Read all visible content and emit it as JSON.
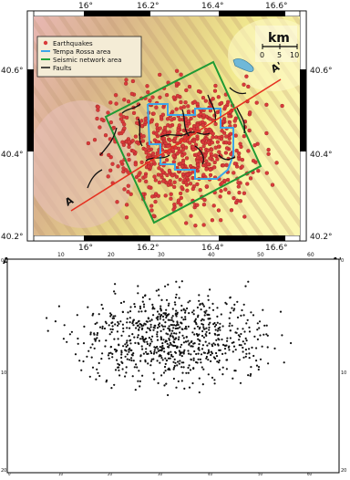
{
  "map": {
    "lon_ticks": [
      "16°",
      "16.2°",
      "16.4°",
      "16.6°"
    ],
    "lat_ticks": [
      "40.6°",
      "40.4°",
      "40.2°"
    ],
    "legend": {
      "items": [
        {
          "key": "earthquakes",
          "label": "Earthquakes",
          "color": "#d93a3a"
        },
        {
          "key": "tempa_rossa",
          "label": "Tempa Rossa area",
          "color": "#3ea6e8"
        },
        {
          "key": "seismic_network",
          "label": "Seismic network area",
          "color": "#22a43a"
        },
        {
          "key": "faults",
          "label": "Faults",
          "color": "#111111"
        }
      ]
    },
    "scale": {
      "unit": "km",
      "ticks": [
        "0",
        "5",
        "10"
      ]
    },
    "section_start_label": "A",
    "section_end_label": "A'"
  },
  "section": {
    "left_label": "A",
    "right_label": "A'",
    "x_ticks": [
      "10",
      "20",
      "30",
      "40",
      "50",
      "60"
    ],
    "y_ticks_left": [
      "0",
      "10",
      "20"
    ],
    "y_ticks_right": [
      "0",
      "10",
      "20"
    ],
    "bottom_ticks": [
      "0",
      "10",
      "20",
      "30",
      "40",
      "50",
      "60"
    ]
  }
}
